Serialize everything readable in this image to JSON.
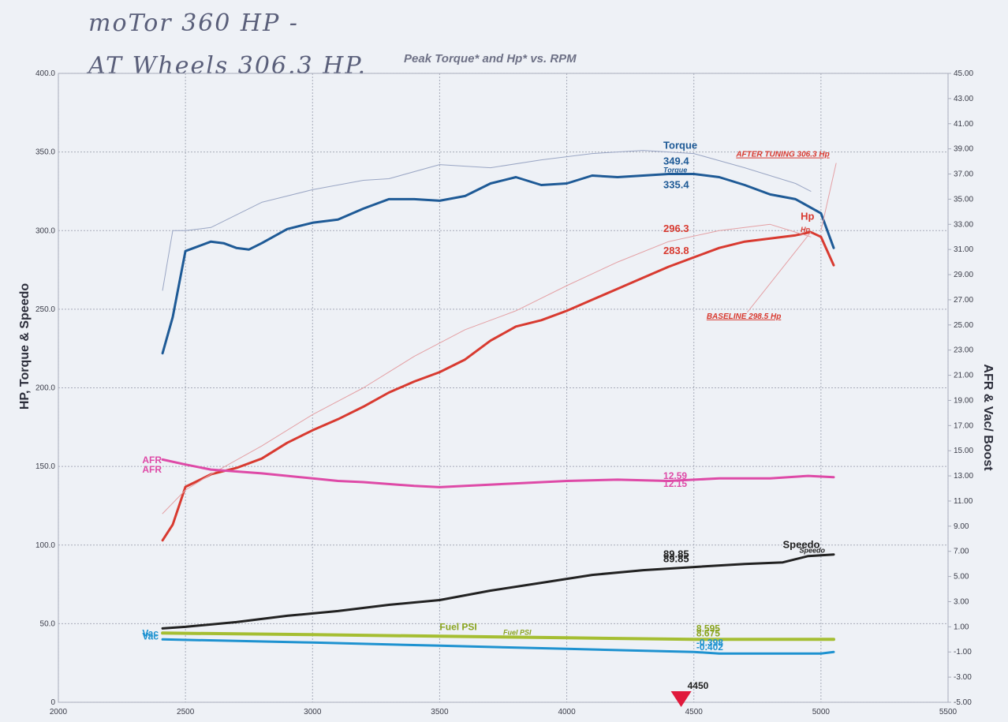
{
  "annotations": {
    "note_motor": "moTor 360 HP -",
    "note_wheels": "AT Wheels 306.3 HP."
  },
  "chart_data": {
    "type": "line",
    "title": "Peak Torque* and Hp* vs. RPM",
    "ylabel_left": "HP, Torque & Speedo",
    "ylabel_right": "AFR & Vac/ Boost",
    "xlim": [
      2000,
      5500
    ],
    "ylim_left": [
      0,
      400
    ],
    "ylim_right": [
      -5,
      45
    ],
    "x_ticks": [
      "2000",
      "2500",
      "3000",
      "3500",
      "4000",
      "4500",
      "5000",
      "5500"
    ],
    "y_ticks_left": [
      "0",
      "50.0",
      "100.0",
      "150.0",
      "200.0",
      "250.0",
      "300.0",
      "350.0",
      "400.0"
    ],
    "y_ticks_right": [
      "-5.00",
      "-3.00",
      "-1.00",
      "1.00",
      "3.00",
      "5.00",
      "7.00",
      "9.00",
      "11.00",
      "13.00",
      "15.00",
      "17.00",
      "19.00",
      "21.00",
      "23.00",
      "25.00",
      "27.00",
      "29.00",
      "31.00",
      "33.00",
      "35.00",
      "37.00",
      "39.00",
      "41.00",
      "43.00",
      "45.00"
    ],
    "grid": true,
    "marker_rpm": "4450",
    "series": [
      {
        "name": "Torque",
        "axis": "left",
        "color": "#1e5a96",
        "width": 3,
        "x": [
          2410,
          2450,
          2500,
          2550,
          2600,
          2650,
          2700,
          2750,
          2800,
          2900,
          3000,
          3100,
          3200,
          3300,
          3400,
          3500,
          3600,
          3700,
          3800,
          3900,
          4000,
          4100,
          4200,
          4300,
          4400,
          4500,
          4600,
          4700,
          4800,
          4900,
          5000,
          5050
        ],
        "y": [
          222,
          245,
          287,
          290,
          293,
          292,
          289,
          288,
          292,
          301,
          305,
          307,
          314,
          320,
          320,
          319,
          322,
          330,
          334,
          329,
          330,
          335,
          334,
          335,
          336,
          336,
          334,
          329,
          323,
          320,
          311,
          289
        ]
      },
      {
        "name": "Torque",
        "axis": "left",
        "color": "#9aa6c4",
        "width": 1,
        "x": [
          2410,
          2450,
          2500,
          2600,
          2800,
          3000,
          3200,
          3300,
          3500,
          3700,
          3900,
          4100,
          4300,
          4500,
          4700,
          4900,
          4960
        ],
        "y": [
          262,
          300,
          300,
          302,
          318,
          326,
          332,
          333,
          342,
          340,
          345,
          349,
          351,
          349,
          340,
          330,
          325
        ]
      },
      {
        "name": "Hp",
        "axis": "left",
        "color": "#d83a30",
        "width": 3,
        "x": [
          2410,
          2450,
          2500,
          2550,
          2600,
          2700,
          2800,
          2900,
          3000,
          3100,
          3200,
          3300,
          3400,
          3500,
          3600,
          3700,
          3800,
          3900,
          4000,
          4100,
          4200,
          4300,
          4400,
          4500,
          4600,
          4700,
          4800,
          4900,
          4960,
          5000,
          5050
        ],
        "y": [
          103,
          113,
          137,
          141,
          145,
          149,
          155,
          165,
          173,
          180,
          188,
          197,
          204,
          210,
          218,
          230,
          239,
          243,
          249,
          256,
          263,
          270,
          277,
          283,
          289,
          293,
          295,
          297,
          299,
          296,
          278
        ]
      },
      {
        "name": "Hp",
        "axis": "left",
        "color": "#e4a0a4",
        "width": 1,
        "x": [
          2410,
          2500,
          2600,
          2800,
          3000,
          3200,
          3400,
          3600,
          3800,
          4000,
          4200,
          4400,
          4600,
          4800,
          4960
        ],
        "y": [
          120,
          135,
          145,
          163,
          183,
          200,
          220,
          237,
          249,
          265,
          280,
          293,
          300,
          304,
          296
        ]
      },
      {
        "name": "AFR",
        "axis": "right",
        "color": "#de4aa7",
        "width": 3,
        "x": [
          2410,
          2500,
          2600,
          2800,
          3000,
          3100,
          3200,
          3400,
          3500,
          3600,
          3800,
          4000,
          4200,
          4400,
          4600,
          4800,
          4950,
          5050
        ],
        "y": [
          14.3,
          13.9,
          13.5,
          13.2,
          12.8,
          12.6,
          12.5,
          12.2,
          12.1,
          12.2,
          12.4,
          12.6,
          12.7,
          12.6,
          12.8,
          12.8,
          13.0,
          12.9
        ]
      },
      {
        "name": "Speedo",
        "axis": "left",
        "color": "#222222",
        "width": 3,
        "x": [
          2410,
          2500,
          2700,
          2900,
          3100,
          3300,
          3500,
          3700,
          3900,
          4100,
          4300,
          4500,
          4700,
          4850,
          4950,
          5050
        ],
        "y": [
          47,
          48,
          51,
          55,
          58,
          62,
          65,
          71,
          76,
          81,
          84,
          86,
          88,
          89,
          93,
          94
        ]
      },
      {
        "name": "Fuel PSI",
        "axis": "left",
        "color": "#a5be32",
        "width": 4,
        "x": [
          2410,
          3000,
          3500,
          4000,
          4500,
          5000,
          5050
        ],
        "y": [
          44,
          43,
          42,
          41,
          40,
          40,
          40
        ]
      },
      {
        "name": "Vac",
        "axis": "left",
        "color": "#1e92d0",
        "width": 3,
        "x": [
          2410,
          3000,
          3500,
          4000,
          4500,
          4600,
          5000,
          5050
        ],
        "y": [
          40,
          38,
          36,
          34,
          32,
          31,
          31,
          32
        ]
      }
    ],
    "labels": [
      {
        "text": "Torque",
        "color": "#1e5a96",
        "size": 13,
        "x": 4380,
        "y": 352
      },
      {
        "text": "349.4",
        "color": "#1e5a96",
        "size": 13,
        "x": 4380,
        "y": 342
      },
      {
        "text": "Torque",
        "color": "#1e5a96",
        "size": 9,
        "x": 4380,
        "y": 337,
        "italic": true
      },
      {
        "text": "335.4",
        "color": "#1e5a96",
        "size": 13,
        "x": 4380,
        "y": 327
      },
      {
        "text": "296.3",
        "color": "#d83a30",
        "size": 13,
        "x": 4380,
        "y": 299
      },
      {
        "text": "283.8",
        "color": "#d83a30",
        "size": 13,
        "x": 4380,
        "y": 285
      },
      {
        "text": "Hp",
        "color": "#d83a30",
        "size": 13,
        "x": 4920,
        "y": 307
      },
      {
        "text": "Hp",
        "color": "#d83a30",
        "size": 9,
        "x": 4920,
        "y": 299,
        "italic": true
      },
      {
        "text": "AFTER TUNING 306.3 Hp",
        "color": "#d83a30",
        "size": 10,
        "x": 4850,
        "y": 347,
        "underline": true,
        "anchor": "middle"
      },
      {
        "text": "BASELINE 298.5 Hp",
        "color": "#d83a30",
        "size": 10,
        "x": 4550,
        "y": 244,
        "underline": true,
        "anchor": "start"
      },
      {
        "text": "AFR",
        "color": "#de4aa7",
        "size": 12,
        "x": 2330,
        "y": 152
      },
      {
        "text": "AFR",
        "color": "#de4aa7",
        "size": 12,
        "x": 2330,
        "y": 146
      },
      {
        "text": "12.59",
        "color": "#de4aa7",
        "size": 12,
        "x": 4380,
        "y": 142
      },
      {
        "text": "12.15",
        "color": "#de4aa7",
        "size": 12,
        "x": 4380,
        "y": 137
      },
      {
        "text": "Speedo",
        "color": "#222222",
        "size": 13,
        "x": 4850,
        "y": 98
      },
      {
        "text": "Speedo",
        "color": "#222222",
        "size": 9,
        "x": 4915,
        "y": 95,
        "italic": true
      },
      {
        "text": "89.85",
        "color": "#222222",
        "size": 13,
        "x": 4380,
        "y": 92
      },
      {
        "text": "89.85",
        "color": "#222222",
        "size": 13,
        "x": 4380,
        "y": 89
      },
      {
        "text": "Fuel PSI",
        "color": "#8aa41f",
        "size": 12,
        "x": 3500,
        "y": 46
      },
      {
        "text": "Fuel PSI",
        "color": "#8aa41f",
        "size": 9,
        "x": 3750,
        "y": 43,
        "italic": true
      },
      {
        "text": "8.595",
        "color": "#8aa41f",
        "size": 12,
        "x": 4510,
        "y": 45
      },
      {
        "text": "8.675",
        "color": "#8aa41f",
        "size": 12,
        "x": 4510,
        "y": 42
      },
      {
        "text": "-0.398",
        "color": "#1e92d0",
        "size": 12,
        "x": 4510,
        "y": 36
      },
      {
        "text": "-0.402",
        "color": "#1e92d0",
        "size": 12,
        "x": 4510,
        "y": 33
      },
      {
        "text": "Vac",
        "color": "#1e92d0",
        "size": 12,
        "x": 2330,
        "y": 42
      },
      {
        "text": "Vac",
        "color": "#1e92d0",
        "size": 12,
        "x": 2330,
        "y": 40
      }
    ]
  }
}
